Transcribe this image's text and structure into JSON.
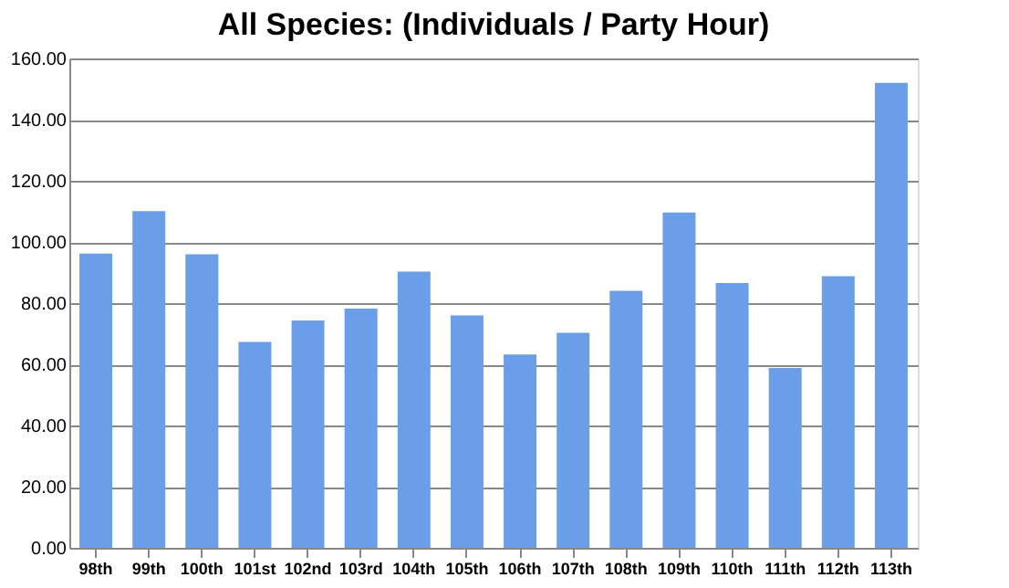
{
  "chart_data": {
    "type": "bar",
    "title": "All Species: (Individuals / Party Hour)",
    "categories": [
      "98th",
      "99th",
      "100th",
      "101st",
      "102nd",
      "103rd",
      "104th",
      "105th",
      "106th",
      "107th",
      "108th",
      "109th",
      "110th",
      "111th",
      "112th",
      "113th"
    ],
    "values": [
      96.2,
      110.1,
      96.0,
      67.3,
      74.3,
      78.2,
      90.3,
      76.0,
      63.2,
      70.3,
      84.0,
      109.6,
      86.6,
      58.8,
      88.8,
      152.0
    ],
    "color": "#6a9ee6",
    "ylim": [
      0,
      160
    ],
    "yticks": [
      {
        "value": 0,
        "label": "0.00"
      },
      {
        "value": 20,
        "label": "20.00"
      },
      {
        "value": 40,
        "label": "40.00"
      },
      {
        "value": 60,
        "label": "60.00"
      },
      {
        "value": 80,
        "label": "80.00"
      },
      {
        "value": 100,
        "label": "100.00"
      },
      {
        "value": 120,
        "label": "120.00"
      },
      {
        "value": 140,
        "label": "140.00"
      },
      {
        "value": 160,
        "label": "160.00"
      }
    ],
    "grid": "y"
  }
}
